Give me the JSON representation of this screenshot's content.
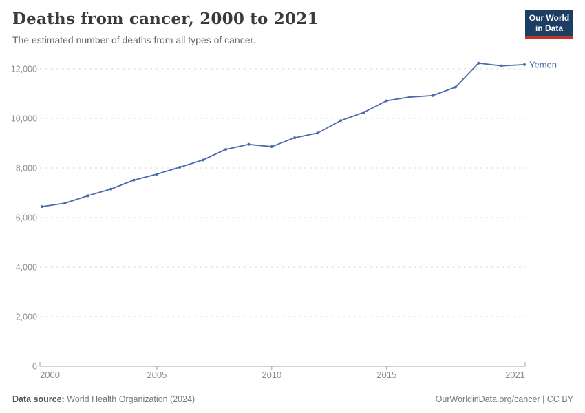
{
  "header": {
    "title": "Deaths from cancer, 2000 to 2021",
    "subtitle": "The estimated number of deaths from all types of cancer.",
    "logo": {
      "line1": "Our World",
      "line2": "in Data"
    }
  },
  "chart_data": {
    "type": "line",
    "title": "Deaths from cancer, 2000 to 2021",
    "xlabel": "",
    "ylabel": "",
    "x": [
      2000,
      2001,
      2002,
      2003,
      2004,
      2005,
      2006,
      2007,
      2008,
      2009,
      2010,
      2011,
      2012,
      2013,
      2014,
      2015,
      2016,
      2017,
      2018,
      2019,
      2020,
      2021
    ],
    "series": [
      {
        "name": "Yemen",
        "color": "#4a6ba8",
        "values": [
          6440,
          6580,
          6880,
          7150,
          7510,
          7750,
          8030,
          8320,
          8750,
          8950,
          8860,
          9220,
          9410,
          9910,
          10240,
          10710,
          10860,
          10920,
          11260,
          12230,
          12120,
          12170
        ]
      }
    ],
    "xlim": [
      2000,
      2021
    ],
    "ylim": [
      0,
      12000
    ],
    "x_ticks": [
      2000,
      2005,
      2010,
      2015,
      2021
    ],
    "y_ticks": [
      0,
      2000,
      4000,
      6000,
      8000,
      10000,
      12000
    ],
    "grid": "dashed-horizontal",
    "legend_position": "end-of-line"
  },
  "footer": {
    "source_label": "Data source:",
    "source_value": " World Health Organization (2024)",
    "right_text": "OurWorldinData.org/cancer | CC BY"
  },
  "colors": {
    "accent_line": "#4a6ba8",
    "logo_bg": "#1d3d63",
    "logo_stripe": "#c0342b",
    "grid": "#dadada",
    "axis": "#a3a3a3",
    "tick_label": "#8e8e8e"
  }
}
